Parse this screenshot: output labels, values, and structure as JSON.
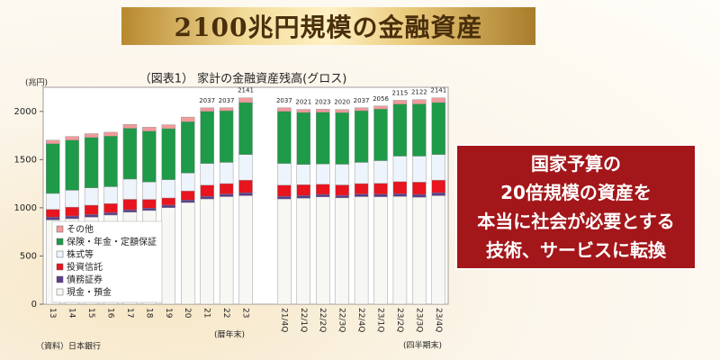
{
  "banner": "2100兆円規模の金融資産",
  "callout_lines": [
    "国家予算の",
    "20倍規模の資産を",
    "本当に社会が必要とする",
    "技術、サービスに転換"
  ],
  "chart_data": {
    "type": "stacked_bar",
    "title": "（図表1） 家計の金融資産残高(グロス)",
    "y_label": "(兆円)",
    "source": "（資料）日本銀行",
    "annual_note": "(暦年末)",
    "quarter_note": "(四半期末)",
    "categories": [
      "13",
      "14",
      "15",
      "16",
      "17",
      "18",
      "19",
      "20",
      "21",
      "22",
      "23",
      null,
      "21/4Q",
      "22/1Q",
      "22/2Q",
      "22/3Q",
      "22/4Q",
      "23/1Q",
      "23/2Q",
      "23/3Q",
      "23/4Q"
    ],
    "total_labels": [
      null,
      null,
      null,
      null,
      null,
      null,
      null,
      null,
      2037,
      2037,
      2141,
      null,
      2037,
      2021,
      2023,
      2020,
      2037,
      2056,
      2115,
      2122,
      2141
    ],
    "ylim": [
      0,
      2250
    ],
    "yticks": [
      0,
      500,
      1000,
      1500,
      2000
    ],
    "series": [
      {
        "name": "現金・預金",
        "color": "#f7f7f4",
        "values": [
          874,
          887,
          903,
          925,
          955,
          972,
          1002,
          1055,
          1092,
          1116,
          1126,
          null,
          1092,
          1100,
          1113,
          1103,
          1116,
          1115,
          1118,
          1110,
          1126
        ]
      },
      {
        "name": "債務証券",
        "color": "#5b3d8c",
        "values": [
          30,
          28,
          27,
          26,
          25,
          25,
          26,
          26,
          27,
          27,
          30,
          null,
          27,
          27,
          26,
          26,
          27,
          27,
          28,
          29,
          30
        ]
      },
      {
        "name": "投資信託",
        "color": "#e8141e",
        "values": [
          80,
          92,
          97,
          93,
          108,
          90,
          74,
          94,
          116,
          108,
          131,
          null,
          116,
          112,
          105,
          108,
          108,
          112,
          125,
          127,
          131
        ]
      },
      {
        "name": "株式等",
        "color": "#eef4fb",
        "values": [
          165,
          175,
          180,
          175,
          210,
          180,
          190,
          185,
          225,
          220,
          265,
          null,
          225,
          210,
          210,
          215,
          220,
          235,
          265,
          270,
          265
        ]
      },
      {
        "name": "保険・年金・定額保証",
        "color": "#1e9a48",
        "values": [
          516,
          520,
          522,
          525,
          527,
          528,
          529,
          533,
          540,
          536,
          540,
          null,
          540,
          540,
          537,
          536,
          536,
          535,
          540,
          541,
          540
        ]
      },
      {
        "name": "その他",
        "color": "#f09a9a",
        "values": [
          36,
          38,
          40,
          40,
          40,
          41,
          40,
          48,
          37,
          30,
          49,
          null,
          37,
          32,
          32,
          32,
          30,
          32,
          39,
          45,
          49
        ]
      }
    ]
  }
}
